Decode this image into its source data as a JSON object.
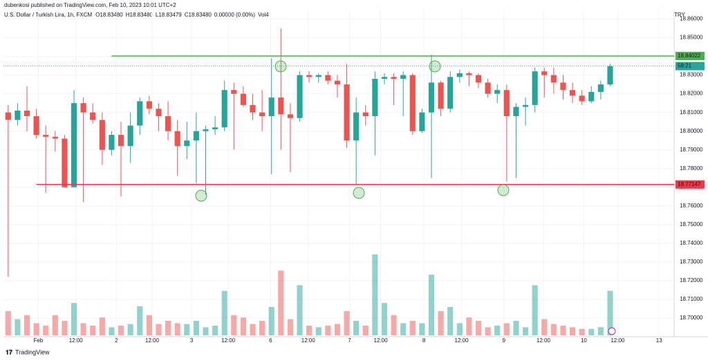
{
  "header": "dubenkosi published on TradingView.com, Feb 10, 2023 10:01 UTC+2",
  "footer": "TradingView",
  "chart_data": {
    "type": "candlestick",
    "title": "U.S. Dollar / Turkish Lira, 1h, FXCM",
    "legend_values": [
      "O18.83480",
      "H18.83480",
      "L18.83479",
      "C18.83480",
      "0.00000 (0.00%)",
      "Vol4"
    ],
    "currency": "TRY",
    "timer": "58:21",
    "up_color": "#26a69a",
    "down_color": "#ef5350",
    "x": [
      0,
      1,
      2,
      3,
      4,
      5,
      6,
      7,
      8,
      9,
      10,
      11,
      12,
      13,
      14,
      15,
      16,
      17,
      18,
      19,
      20,
      21,
      22,
      23,
      24,
      25,
      26,
      27,
      28,
      29,
      30,
      31,
      32,
      33,
      34,
      35,
      36,
      37,
      38,
      39,
      40,
      41,
      42,
      43,
      44,
      45,
      46,
      47,
      48,
      49,
      50,
      51,
      52,
      53,
      54,
      55,
      56,
      57,
      58,
      59,
      60,
      61,
      62,
      63,
      64
    ],
    "open": [
      18.81,
      18.806,
      18.811,
      18.808,
      18.798,
      18.797,
      18.796,
      18.77,
      18.815,
      18.81,
      18.806,
      18.79,
      18.798,
      18.792,
      18.803,
      18.816,
      18.812,
      18.808,
      18.8,
      18.792,
      18.795,
      18.8,
      18.801,
      18.802,
      18.822,
      18.82,
      18.814,
      18.81,
      18.808,
      18.818,
      18.809,
      18.807,
      18.83,
      18.829,
      18.83,
      18.827,
      18.825,
      18.795,
      18.81,
      18.808,
      18.828,
      18.829,
      18.828,
      18.83,
      18.8,
      18.81,
      18.826,
      18.812,
      18.829,
      18.831,
      18.83,
      18.826,
      18.82,
      18.822,
      18.808,
      18.813,
      18.814,
      18.832,
      18.83,
      18.826,
      18.822,
      18.819,
      18.816,
      18.821,
      18.825
    ],
    "high": [
      18.814,
      18.815,
      18.824,
      18.812,
      18.803,
      18.8,
      18.798,
      18.822,
      18.818,
      18.815,
      18.81,
      18.8,
      18.805,
      18.81,
      18.818,
      18.819,
      18.815,
      18.816,
      18.806,
      18.805,
      18.81,
      18.803,
      18.808,
      18.827,
      18.826,
      18.824,
      18.82,
      18.822,
      18.839,
      18.855,
      18.815,
      18.832,
      18.832,
      18.831,
      18.832,
      18.83,
      18.836,
      18.818,
      18.814,
      18.832,
      18.831,
      18.831,
      18.832,
      18.831,
      18.812,
      18.841,
      18.827,
      18.832,
      18.833,
      18.832,
      18.831,
      18.828,
      18.825,
      18.825,
      18.815,
      18.818,
      18.834,
      18.834,
      18.834,
      18.83,
      18.826,
      18.822,
      18.824,
      18.827,
      18.836
    ],
    "low": [
      18.722,
      18.803,
      18.8,
      18.796,
      18.767,
      18.789,
      18.77,
      18.77,
      18.762,
      18.804,
      18.782,
      18.787,
      18.765,
      18.783,
      18.798,
      18.809,
      18.8,
      18.795,
      18.776,
      18.785,
      18.772,
      18.766,
      18.798,
      18.8,
      18.79,
      18.813,
      18.806,
      18.8,
      18.777,
      18.79,
      18.778,
      18.805,
      18.826,
      18.826,
      18.825,
      18.818,
      18.791,
      18.771,
      18.803,
      18.787,
      18.825,
      18.814,
      18.808,
      18.798,
      18.799,
      18.775,
      18.808,
      18.81,
      18.826,
      18.824,
      18.823,
      18.818,
      18.815,
      18.773,
      18.775,
      18.803,
      18.81,
      18.818,
      18.82,
      18.817,
      18.815,
      18.814,
      18.815,
      18.817,
      18.824
    ],
    "close": [
      18.806,
      18.811,
      18.808,
      18.798,
      18.797,
      18.796,
      18.77,
      18.815,
      18.81,
      18.806,
      18.79,
      18.798,
      18.792,
      18.803,
      18.816,
      18.812,
      18.808,
      18.8,
      18.792,
      18.795,
      18.8,
      18.801,
      18.802,
      18.822,
      18.82,
      18.814,
      18.81,
      18.808,
      18.818,
      18.809,
      18.807,
      18.83,
      18.829,
      18.83,
      18.827,
      18.825,
      18.795,
      18.81,
      18.808,
      18.828,
      18.829,
      18.828,
      18.83,
      18.8,
      18.81,
      18.826,
      18.812,
      18.829,
      18.831,
      18.83,
      18.826,
      18.82,
      18.822,
      18.808,
      18.813,
      18.814,
      18.832,
      18.83,
      18.826,
      18.822,
      18.819,
      18.816,
      18.821,
      18.825,
      18.8348
    ],
    "volume": [
      30,
      20,
      25,
      15,
      12,
      25,
      18,
      40,
      15,
      12,
      22,
      10,
      12,
      14,
      36,
      25,
      14,
      18,
      15,
      14,
      18,
      10,
      12,
      55,
      25,
      22,
      14,
      18,
      35,
      80,
      20,
      62,
      12,
      10,
      12,
      14,
      30,
      18,
      12,
      100,
      40,
      25,
      15,
      18,
      15,
      75,
      30,
      35,
      15,
      22,
      18,
      10,
      12,
      15,
      18,
      10,
      62,
      20,
      14,
      12,
      10,
      8,
      8,
      10,
      55
    ],
    "volume_lim": [
      0,
      100
    ],
    "xlim": [
      -0.5,
      70.8
    ],
    "xticks": [
      {
        "value": 3.2,
        "label": "Feb"
      },
      {
        "value": 7.2,
        "label": "12:00"
      },
      {
        "value": 11.5,
        "label": "2"
      },
      {
        "value": 15.3,
        "label": "12:00"
      },
      {
        "value": 19.5,
        "label": "3"
      },
      {
        "value": 23.4,
        "label": "12:00"
      },
      {
        "value": 27.9,
        "label": "6"
      },
      {
        "value": 31.9,
        "label": "12:00"
      },
      {
        "value": 36.3,
        "label": "7"
      },
      {
        "value": 39.6,
        "label": "12:00"
      },
      {
        "value": 44.2,
        "label": "8"
      },
      {
        "value": 48.2,
        "label": "12:00"
      },
      {
        "value": 52.7,
        "label": "9"
      },
      {
        "value": 56.9,
        "label": "12:00"
      },
      {
        "value": 61.2,
        "label": "10"
      },
      {
        "value": 64.8,
        "label": "12:00"
      },
      {
        "value": 69.2,
        "label": "13"
      }
    ],
    "ylim": [
      18.69,
      18.865
    ],
    "yticks": [
      {
        "value": 18.86,
        "label": "18.86000"
      },
      {
        "value": 18.85,
        "label": "18.85000"
      },
      {
        "value": 18.84,
        "label": "18.84000"
      },
      {
        "value": 18.83,
        "label": "18.83000"
      },
      {
        "value": 18.82,
        "label": "18.82000"
      },
      {
        "value": 18.81,
        "label": "18.81000"
      },
      {
        "value": 18.8,
        "label": "18.80000"
      },
      {
        "value": 18.79,
        "label": "18.79000"
      },
      {
        "value": 18.78,
        "label": "18.78000"
      },
      {
        "value": 18.77,
        "label": "18.77000"
      },
      {
        "value": 18.76,
        "label": "18.76000"
      },
      {
        "value": 18.75,
        "label": "18.75000"
      },
      {
        "value": 18.74,
        "label": "18.74000"
      },
      {
        "value": 18.73,
        "label": "18.73000"
      },
      {
        "value": 18.72,
        "label": "18.72000"
      },
      {
        "value": 18.71,
        "label": "18.71000"
      },
      {
        "value": 18.7,
        "label": "18.70000"
      }
    ],
    "levels": [
      {
        "value": 18.84022,
        "color": "#4caf50",
        "start": 11.0
      },
      {
        "value": 18.77147,
        "color": "#f23645",
        "start": 3.0
      }
    ],
    "grid": true
  }
}
